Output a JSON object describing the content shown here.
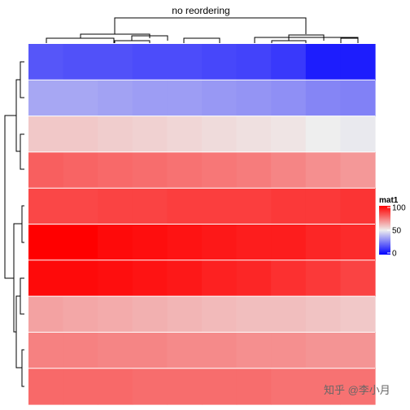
{
  "chart_data": {
    "type": "heatmap",
    "title": "no reordering",
    "rows": 10,
    "cols": 10,
    "values": [
      [
        18,
        17,
        17,
        16,
        16,
        15,
        14,
        12,
        6,
        6
      ],
      [
        35,
        35,
        34,
        33,
        33,
        32,
        31,
        30,
        28,
        27
      ],
      [
        58,
        58,
        57,
        56,
        55,
        54,
        53,
        52,
        50,
        49
      ],
      [
        80,
        79,
        78,
        77,
        76,
        75,
        74,
        72,
        70,
        68
      ],
      [
        85,
        85,
        86,
        86,
        87,
        87,
        87,
        88,
        88,
        89
      ],
      [
        100,
        100,
        98,
        97,
        96,
        95,
        94,
        94,
        92,
        91
      ],
      [
        98,
        98,
        97,
        96,
        95,
        93,
        92,
        90,
        88,
        86
      ],
      [
        66,
        65,
        64,
        63,
        62,
        61,
        60,
        60,
        59,
        58
      ],
      [
        73,
        73,
        72,
        72,
        71,
        71,
        70,
        70,
        69,
        69
      ],
      [
        78,
        78,
        78,
        77,
        77,
        77,
        77,
        76,
        76,
        76
      ]
    ],
    "color_scale": {
      "low": "#0000ff",
      "mid": "#eeeeee",
      "high": "#ff0000",
      "domain": [
        0,
        50,
        100
      ]
    },
    "legend": {
      "title": "mat1",
      "ticks": [
        100,
        50,
        0
      ],
      "placement": "right"
    },
    "row_dendrogram": "left",
    "column_dendrogram": "top"
  },
  "watermark": "知乎 @李小月"
}
